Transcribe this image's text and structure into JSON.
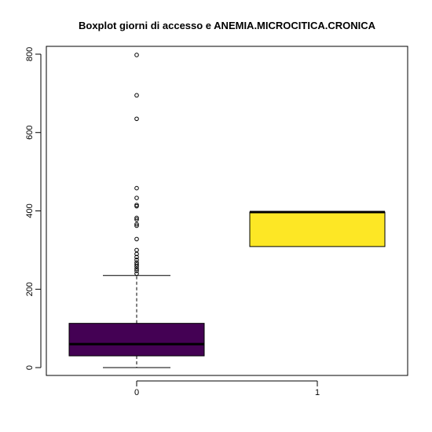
{
  "chart_data": {
    "type": "boxplot",
    "title": "Boxplot giorni di accesso e ANEMIA.MICROCITICA.CRONICA",
    "xlabel": "",
    "ylabel": "",
    "ylim": [
      -20,
      820
    ],
    "yticks": [
      0,
      200,
      400,
      600,
      800
    ],
    "grid": false,
    "categories": [
      "0",
      "1"
    ],
    "boxes": [
      {
        "category": "0",
        "color": "#440154",
        "whisker_low": 0,
        "q1": 30,
        "median": 60,
        "q3": 113,
        "whisker_high": 235,
        "outliers": [
          240,
          247,
          252,
          258,
          263,
          268,
          275,
          282,
          290,
          300,
          328,
          362,
          366,
          378,
          382,
          412,
          415,
          433,
          458,
          635,
          695,
          798
        ]
      },
      {
        "category": "1",
        "color": "#fde725",
        "whisker_low": 309,
        "q1": 309,
        "median": 397,
        "q3": 397,
        "whisker_high": 397,
        "outliers": []
      }
    ]
  }
}
